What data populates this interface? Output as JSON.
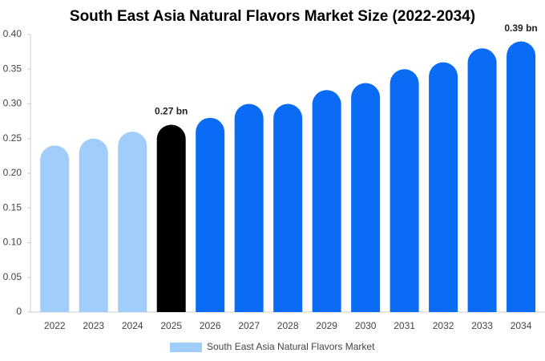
{
  "chart_data": {
    "type": "bar",
    "title": "South East Asia Natural Flavors Market Size (2022-2034)",
    "categories": [
      "2022",
      "2023",
      "2024",
      "2025",
      "2026",
      "2027",
      "2028",
      "2029",
      "2030",
      "2031",
      "2032",
      "2033",
      "2034"
    ],
    "series": [
      {
        "name": "South East Asia Natural Flavors Market",
        "color": "#a0cdfa",
        "values": [
          0.24,
          0.25,
          0.26,
          0.27,
          0.28,
          0.3,
          0.3,
          0.32,
          0.33,
          0.35,
          0.36,
          0.38,
          0.39
        ],
        "colors": [
          "#a0cdfa",
          "#a0cdfa",
          "#a0cdfa",
          "#000000",
          "#0a6cf5",
          "#0a6cf5",
          "#0a6cf5",
          "#0a6cf5",
          "#0a6cf5",
          "#0a6cf5",
          "#0a6cf5",
          "#0a6cf5",
          "#0a6cf5"
        ],
        "value_labels": [
          null,
          null,
          null,
          "0.27 bn",
          null,
          null,
          null,
          null,
          null,
          null,
          null,
          null,
          "0.39 bn"
        ]
      }
    ],
    "ylim": [
      0,
      0.4
    ],
    "yticks": [
      0,
      0.05,
      {
        "value": 0.1,
        "label": "0.10"
      },
      0.15,
      {
        "value": 0.2,
        "label": "0.20"
      },
      0.25,
      {
        "value": 0.3,
        "label": "0.30"
      },
      0.35,
      {
        "value": 0.4,
        "label": "0.40"
      }
    ],
    "legend": "bottom"
  }
}
